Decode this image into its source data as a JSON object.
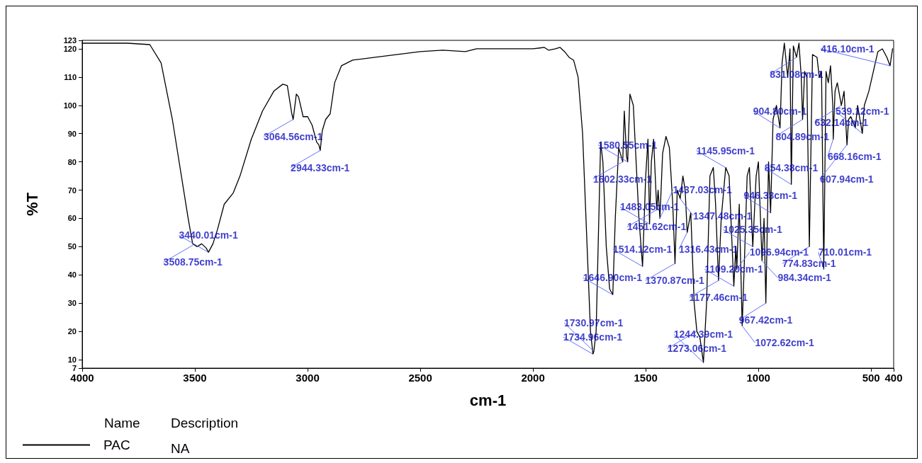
{
  "chart_data": {
    "type": "line",
    "xlabel": "cm-1",
    "ylabel": "%T",
    "xlim": [
      4000,
      400
    ],
    "xticks": [
      4000,
      3500,
      3000,
      2500,
      2000,
      1500,
      1000,
      500,
      400
    ],
    "ylim": [
      7,
      123
    ],
    "yticks": [
      7,
      10,
      20,
      30,
      40,
      50,
      60,
      70,
      80,
      90,
      100,
      110,
      120,
      123
    ],
    "grid": false,
    "legend": "bottom left",
    "legend_title": "Name",
    "marker": "none",
    "line_style": "solid",
    "series": [
      {
        "name": "PAC",
        "color": "#000000",
        "x": [
          4000,
          3800,
          3700,
          3650,
          3600,
          3560,
          3530,
          3510,
          3490,
          3470,
          3450,
          3440,
          3420,
          3400,
          3370,
          3330,
          3300,
          3250,
          3200,
          3150,
          3110,
          3090,
          3070,
          3064,
          3050,
          3040,
          3020,
          3000,
          2980,
          2960,
          2950,
          2944,
          2935,
          2920,
          2900,
          2880,
          2850,
          2800,
          2700,
          2600,
          2500,
          2400,
          2300,
          2250,
          2100,
          2000,
          1950,
          1930,
          1900,
          1880,
          1860,
          1840,
          1820,
          1800,
          1780,
          1760,
          1745,
          1734,
          1730,
          1720,
          1700,
          1690,
          1675,
          1660,
          1646,
          1635,
          1620,
          1602,
          1595,
          1585,
          1580,
          1570,
          1555,
          1530,
          1514,
          1500,
          1490,
          1483,
          1475,
          1465,
          1451,
          1445,
          1437,
          1425,
          1410,
          1395,
          1380,
          1370,
          1360,
          1347,
          1335,
          1325,
          1316,
          1300,
          1285,
          1273,
          1260,
          1244,
          1230,
          1215,
          1200,
          1190,
          1177,
          1165,
          1145,
          1130,
          1109,
          1100,
          1096,
          1085,
          1072,
          1060,
          1050,
          1040,
          1025,
          1010,
          1000,
          984,
          975,
          967,
          955,
          946,
          935,
          920,
          904,
          895,
          885,
          870,
          860,
          854,
          845,
          831,
          820,
          810,
          804,
          795,
          785,
          774,
          760,
          740,
          730,
          720,
          710,
          700,
          690,
          680,
          670,
          668,
          660,
          650,
          632,
          620,
          607,
          600,
          590,
          570,
          560,
          539,
          530,
          510,
          490,
          470,
          450,
          430,
          416,
          405
        ],
        "values": [
          122,
          122,
          121.5,
          115,
          95,
          75,
          60,
          51,
          50,
          51,
          49.5,
          48,
          51,
          56,
          65,
          69,
          75,
          88,
          98,
          105,
          107.5,
          107,
          97,
          95,
          104,
          103,
          96,
          96,
          93,
          87,
          86,
          84,
          91,
          95,
          97,
          108,
          114,
          116,
          117,
          118,
          119,
          119.5,
          119,
          120,
          120,
          120,
          120.5,
          119.5,
          120,
          120.5,
          119,
          117,
          116,
          110,
          90,
          50,
          20,
          12,
          13,
          20,
          87,
          80,
          50,
          35,
          33,
          60,
          85,
          80,
          98,
          82,
          80,
          104,
          100,
          60,
          43,
          75,
          88,
          58,
          80,
          88,
          63,
          70,
          60,
          83,
          89,
          85,
          65,
          44,
          70,
          67,
          75,
          70,
          55,
          62,
          30,
          20,
          18,
          9,
          30,
          75,
          78,
          65,
          38,
          60,
          78,
          75,
          36,
          50,
          42,
          65,
          22,
          50,
          75,
          78,
          50,
          75,
          80,
          45,
          60,
          30,
          80,
          62,
          95,
          100,
          92,
          115,
          122,
          110,
          120,
          72,
          121,
          117,
          122,
          110,
          95,
          112,
          110,
          50,
          118,
          117,
          110,
          112,
          42,
          112,
          108,
          114,
          100,
          88,
          105,
          108,
          100,
          105,
          86,
          95,
          96,
          92,
          100,
          90,
          100,
          105,
          112,
          119,
          120,
          117,
          114,
          120
        ]
      }
    ],
    "annotations": [
      {
        "text": "3508.75cm-1",
        "x": 3508.75,
        "y": 50.5
      },
      {
        "text": "3440.01cm-1",
        "x": 3440.01,
        "y": 48
      },
      {
        "text": "3064.56cm-1",
        "x": 3064.56,
        "y": 95
      },
      {
        "text": "2944.33cm-1",
        "x": 2944.33,
        "y": 84
      },
      {
        "text": "1734.96cm-1",
        "x": 1734.96,
        "y": 12
      },
      {
        "text": "1730.97cm-1",
        "x": 1730.97,
        "y": 13
      },
      {
        "text": "1646.90cm-1",
        "x": 1646.9,
        "y": 33
      },
      {
        "text": "1602.33cm-1",
        "x": 1602.33,
        "y": 80
      },
      {
        "text": "1580.55cm-1",
        "x": 1580.55,
        "y": 80
      },
      {
        "text": "1514.12cm-1",
        "x": 1514.12,
        "y": 43
      },
      {
        "text": "1483.05cm-1",
        "x": 1483.05,
        "y": 58
      },
      {
        "text": "1451.62cm-1",
        "x": 1451.62,
        "y": 63
      },
      {
        "text": "1437.03cm-1",
        "x": 1437.03,
        "y": 60
      },
      {
        "text": "1370.87cm-1",
        "x": 1370.87,
        "y": 44
      },
      {
        "text": "1347.48cm-1",
        "x": 1347.48,
        "y": 67
      },
      {
        "text": "1316.43cm-1",
        "x": 1316.43,
        "y": 55
      },
      {
        "text": "1273.06cm-1",
        "x": 1273.06,
        "y": 20
      },
      {
        "text": "1244.39cm-1",
        "x": 1244.39,
        "y": 9
      },
      {
        "text": "1177.46cm-1",
        "x": 1177.46,
        "y": 38
      },
      {
        "text": "1145.95cm-1",
        "x": 1145.95,
        "y": 78
      },
      {
        "text": "1109.20cm-1",
        "x": 1109.2,
        "y": 36
      },
      {
        "text": "1096.94cm-1",
        "x": 1096.94,
        "y": 42
      },
      {
        "text": "1072.62cm-1",
        "x": 1072.62,
        "y": 22
      },
      {
        "text": "1025.35cm-1",
        "x": 1025.35,
        "y": 50
      },
      {
        "text": "984.34cm-1",
        "x": 984.34,
        "y": 45
      },
      {
        "text": "967.42cm-1",
        "x": 967.42,
        "y": 30
      },
      {
        "text": "946.33cm-1",
        "x": 946.33,
        "y": 62
      },
      {
        "text": "904.80cm-1",
        "x": 904.8,
        "y": 92
      },
      {
        "text": "854.38cm-1",
        "x": 854.38,
        "y": 72
      },
      {
        "text": "831.08cm-1",
        "x": 831.08,
        "y": 117
      },
      {
        "text": "804.89cm-1",
        "x": 804.89,
        "y": 95
      },
      {
        "text": "774.83cm-1",
        "x": 774.83,
        "y": 50
      },
      {
        "text": "710.01cm-1",
        "x": 710.01,
        "y": 42
      },
      {
        "text": "668.16cm-1",
        "x": 668.16,
        "y": 88
      },
      {
        "text": "632.14cm-1",
        "x": 632.14,
        "y": 100
      },
      {
        "text": "607.94cm-1",
        "x": 607.94,
        "y": 86
      },
      {
        "text": "539.12cm-1",
        "x": 539.12,
        "y": 90
      },
      {
        "text": "416.10cm-1",
        "x": 416.1,
        "y": 114
      },
      "Description",
      "NA"
    ]
  }
}
